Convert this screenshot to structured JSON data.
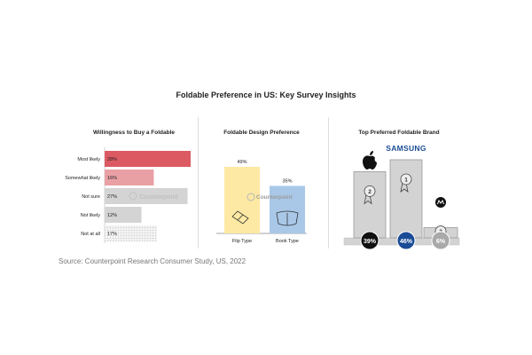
{
  "title": "Foldable Preference in US: Key Survey Insights",
  "source": "Source: Counterpoint Research Consumer Study, US, 2022",
  "watermark": "Counterpoint",
  "colors": {
    "red": "#dc5a62",
    "pink": "#e9a0a5",
    "gray": "#d4d4d4",
    "dotted": "#e4e4e4",
    "yellow": "#fde9a3",
    "blue": "#a9c8e8",
    "podium": "#d3d3d3",
    "black": "#111111",
    "samsung_blue": "#1a4c96",
    "moto_gray": "#a9a9a9"
  },
  "chart_data": [
    {
      "type": "bar",
      "orientation": "horizontal",
      "title": "Willingness to Buy a Foldable",
      "categories": [
        "Most likely",
        "Somewhat likely",
        "Not sure",
        "Not likely",
        "Not at all"
      ],
      "values": [
        28,
        16,
        27,
        12,
        17
      ],
      "labels": [
        "28%",
        "16%",
        "27%",
        "12%",
        "17%"
      ]
    },
    {
      "type": "bar",
      "title": "Foldable Design Preference",
      "categories": [
        "Flip Type",
        "Book Type"
      ],
      "values": [
        49,
        35
      ],
      "labels": [
        "49%",
        "35%"
      ]
    },
    {
      "type": "bar",
      "title": "Top Preferred Foldable Brand",
      "categories": [
        "Apple",
        "Samsung",
        "Motorola"
      ],
      "brand_text": [
        "",
        "SAMSUNG",
        ""
      ],
      "ranks": [
        2,
        1,
        3
      ],
      "values": [
        39,
        46,
        6
      ],
      "labels": [
        "39%",
        "46%",
        "6%"
      ]
    }
  ]
}
